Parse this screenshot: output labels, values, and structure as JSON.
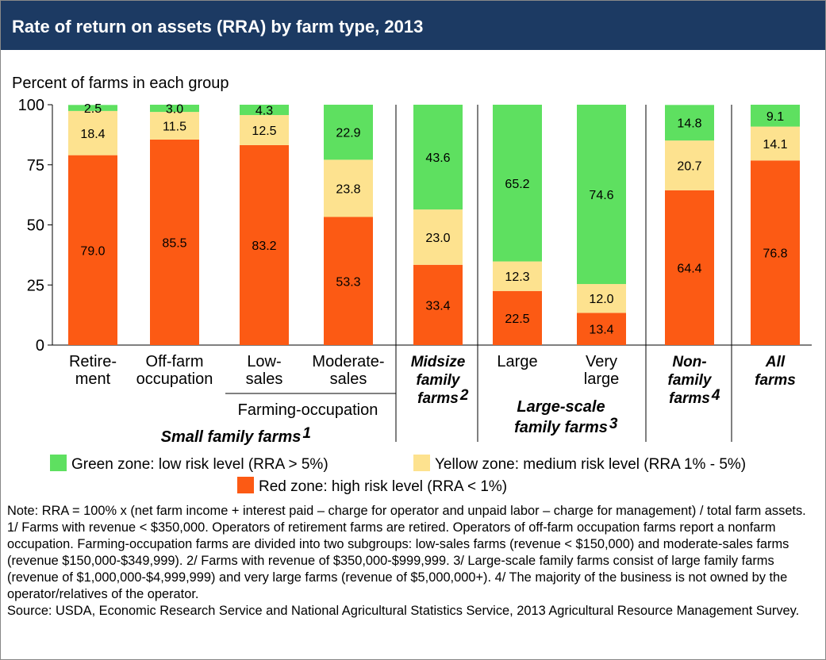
{
  "chart_data": {
    "type": "stacked_bar",
    "title": "Rate of return on assets (RRA) by farm type, 2013",
    "y_label": "Percent of farms in each group",
    "categories": [
      "Retire-\nment",
      "Off-farm\noccupation",
      "Low-\nsales",
      "Moderate-\nsales",
      "Midsize\nfamily\nfarms",
      "Large",
      "Very\nlarge",
      "Non-\nfamily\nfarms",
      "All\nfarms"
    ],
    "category_marks": [
      null,
      null,
      null,
      null,
      "2",
      null,
      null,
      "4",
      null
    ],
    "category_emphasis": [
      false,
      false,
      false,
      false,
      true,
      false,
      false,
      true,
      true
    ],
    "groups": [
      {
        "label": "Farming-occupation",
        "mark": null,
        "emphasis": false,
        "categories": [
          2,
          3
        ]
      },
      {
        "label": "Small family farms",
        "mark": "1",
        "emphasis": true,
        "categories": [
          0,
          3
        ]
      },
      {
        "label": "Large-scale\nfamily farms",
        "mark": "3",
        "emphasis": true,
        "categories": [
          5,
          6
        ]
      }
    ],
    "series": [
      {
        "name": "Red zone: high risk level (RRA < 1%)",
        "color": "#fc5a14",
        "values": [
          79.0,
          85.5,
          83.2,
          53.3,
          33.4,
          22.5,
          13.4,
          64.4,
          76.8
        ],
        "value_labels": [
          "79.0",
          "85.5",
          "83.2",
          "53.3",
          "33.4",
          "22.5",
          "13.4",
          "64.4",
          "76.8"
        ]
      },
      {
        "name": "Yellow zone: medium risk level (RRA 1% - 5%)",
        "color": "#fde28f",
        "values": [
          18.4,
          11.5,
          12.5,
          23.8,
          23.0,
          12.3,
          12.0,
          20.7,
          14.1
        ],
        "value_labels": [
          "18.4",
          "11.5",
          "12.5",
          "23.8",
          "23.0",
          "12.3",
          "12.0",
          "20.7",
          "14.1"
        ]
      },
      {
        "name": "Green zone: low risk level (RRA > 5%)",
        "color": "#5ee060",
        "values": [
          2.5,
          3.0,
          4.3,
          22.9,
          43.6,
          65.2,
          74.6,
          14.8,
          9.1
        ],
        "value_labels": [
          "2.5",
          "3.0",
          "4.3",
          "22.9",
          "43.6",
          "65.2",
          "74.6",
          "14.8",
          "9.1"
        ]
      }
    ],
    "ylim": [
      0,
      100
    ],
    "yticks": [
      0,
      25,
      50,
      75,
      100
    ],
    "notes": [
      "Note: RRA = 100% x (net farm income + interest paid – charge for operator and unpaid labor – charge for management) / total farm assets.",
      "1/ Farms with revenue < $350,000. Operators of retirement farms are retired. Operators of off-farm occupation farms report a nonfarm occupation. Farming-occupation farms are divided into two subgroups: low-sales farms (revenue < $150,000) and moderate-sales farms (revenue $150,000-$349,999). 2/ Farms with revenue of $350,000-$999,999.  3/ Large-scale family farms consist of large family farms (revenue of $1,000,000-$4,999,999) and very large farms (revenue of $5,000,000+). 4/ The majority of the business is not owned by the operator/relatives of the operator.",
      "Source: USDA, Economic Research Service and National Agricultural Statistics Service, 2013 Agricultural Resource Management Survey."
    ]
  }
}
